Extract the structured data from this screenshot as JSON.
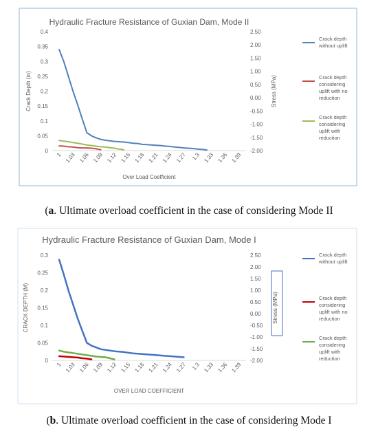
{
  "chart_data": [
    {
      "type": "line",
      "title": "Hydraulic Fracture Resistance of Guxian Dam, Mode II",
      "xlabel": "Over Load Coefficient",
      "ylabel": "Crack Depth (m)",
      "y2label": "Stress (MPa)",
      "categories": [
        "1",
        "1.03",
        "1.06",
        "1.09",
        "1.12",
        "1.15",
        "1.18",
        "1.21",
        "1.24",
        "1.27",
        "1.3",
        "1.33",
        "1.36",
        "1.39"
      ],
      "ylim": [
        0,
        0.4
      ],
      "yticks": [
        "0",
        "0.05",
        "0.1",
        "0.15",
        "0.2",
        "0.25",
        "0.3",
        "0.35",
        "0.4"
      ],
      "y2lim": [
        -2.0,
        2.5
      ],
      "y2ticks": [
        "-2.00",
        "-1.50",
        "-1.00",
        "-0.50",
        "0.00",
        "0.50",
        "1.00",
        "1.50",
        "2.00",
        "2.50"
      ],
      "legend_position": "right",
      "grid": false,
      "series": [
        {
          "name": "Crack depth without uplift",
          "color": "#4f81bd",
          "x": [
            1.0,
            1.01,
            1.02,
            1.03,
            1.04,
            1.05,
            1.06,
            1.07,
            1.08,
            1.09,
            1.1,
            1.11,
            1.12,
            1.13,
            1.14,
            1.15,
            1.16,
            1.17,
            1.18,
            1.19,
            1.2,
            1.21,
            1.22,
            1.23,
            1.24,
            1.25,
            1.26,
            1.27,
            1.28,
            1.29,
            1.3,
            1.31,
            1.32
          ],
          "y": [
            0.34,
            0.3,
            0.25,
            0.2,
            0.155,
            0.107,
            0.06,
            0.05,
            0.043,
            0.038,
            0.035,
            0.033,
            0.031,
            0.03,
            0.029,
            0.027,
            0.025,
            0.024,
            0.021,
            0.02,
            0.019,
            0.018,
            0.017,
            0.015,
            0.014,
            0.012,
            0.011,
            0.009,
            0.008,
            0.007,
            0.005,
            0.004,
            0.002
          ]
        },
        {
          "name": "Crack depth considering uplift with no reduction",
          "color": "#c0504d",
          "x": [
            1.0,
            1.01,
            1.02,
            1.03,
            1.04,
            1.05,
            1.06,
            1.07,
            1.08,
            1.09
          ],
          "y": [
            0.016,
            0.015,
            0.013,
            0.012,
            0.01,
            0.009,
            0.009,
            0.008,
            0.006,
            0.003
          ]
        },
        {
          "name": "Crack depth considering uplift with reduction",
          "color": "#9bbb59",
          "x": [
            1.0,
            1.01,
            1.02,
            1.03,
            1.04,
            1.05,
            1.06,
            1.07,
            1.08,
            1.09,
            1.1,
            1.11,
            1.12,
            1.13,
            1.14
          ],
          "y": [
            0.034,
            0.032,
            0.03,
            0.027,
            0.025,
            0.022,
            0.019,
            0.017,
            0.015,
            0.013,
            0.012,
            0.01,
            0.008,
            0.005,
            0.003
          ]
        }
      ],
      "caption_label": "a",
      "caption_text": ". Ultimate overload coefficient in the case of considering Mode II"
    },
    {
      "type": "line",
      "title": "Hydraulic Fracture Resistance of Guxian Dam, Mode I",
      "xlabel": "OVER LOAD COEFFICIENT",
      "ylabel": "CRACK DEPTH (M)",
      "y2label": "Stress (MPa)",
      "categories": [
        "1",
        "1.03",
        "1.06",
        "1.09",
        "1.12",
        "1.15",
        "1.18",
        "1.21",
        "1.24",
        "1.27",
        "1.3",
        "1.33",
        "1.36",
        "1.39"
      ],
      "ylim": [
        0,
        0.3
      ],
      "yticks": [
        "0",
        "0.05",
        "0.1",
        "0.15",
        "0.2",
        "0.25",
        "0.3"
      ],
      "y2lim": [
        -2.0,
        2.5
      ],
      "y2ticks": [
        "-2.00",
        "-1.50",
        "-1.00",
        "-0.50",
        "0.00",
        "0.50",
        "1.00",
        "1.50",
        "2.00",
        "2.50"
      ],
      "legend_position": "right",
      "grid": false,
      "series": [
        {
          "name": "Crack depth without uplift",
          "color": "#4472c4",
          "x": [
            1.0,
            1.01,
            1.02,
            1.03,
            1.04,
            1.05,
            1.06,
            1.07,
            1.08,
            1.09,
            1.1,
            1.11,
            1.12,
            1.13,
            1.14,
            1.15,
            1.16,
            1.17,
            1.18,
            1.19,
            1.2,
            1.21,
            1.22,
            1.23,
            1.24,
            1.25,
            1.26,
            1.27
          ],
          "y": [
            0.287,
            0.245,
            0.2,
            0.16,
            0.12,
            0.085,
            0.05,
            0.042,
            0.037,
            0.032,
            0.03,
            0.028,
            0.026,
            0.025,
            0.024,
            0.022,
            0.02,
            0.019,
            0.018,
            0.017,
            0.016,
            0.015,
            0.014,
            0.013,
            0.012,
            0.011,
            0.01,
            0.009
          ]
        },
        {
          "name": "Crack depth considering uplift with no reduction",
          "color": "#c00000",
          "x": [
            1.0,
            1.01,
            1.02,
            1.03,
            1.04,
            1.05,
            1.06,
            1.07
          ],
          "y": [
            0.012,
            0.011,
            0.01,
            0.009,
            0.008,
            0.006,
            0.005,
            0.003
          ]
        },
        {
          "name": "Crack depth considering uplift with reduction",
          "color": "#70ad47",
          "x": [
            1.0,
            1.01,
            1.02,
            1.03,
            1.04,
            1.05,
            1.06,
            1.07,
            1.08,
            1.09,
            1.1,
            1.11,
            1.12
          ],
          "y": [
            0.028,
            0.025,
            0.023,
            0.021,
            0.019,
            0.017,
            0.015,
            0.013,
            0.011,
            0.01,
            0.009,
            0.006,
            0.003
          ]
        }
      ],
      "caption_label": "b",
      "caption_text": ". Ultimate overload coefficient in the case of considering Mode I"
    }
  ]
}
